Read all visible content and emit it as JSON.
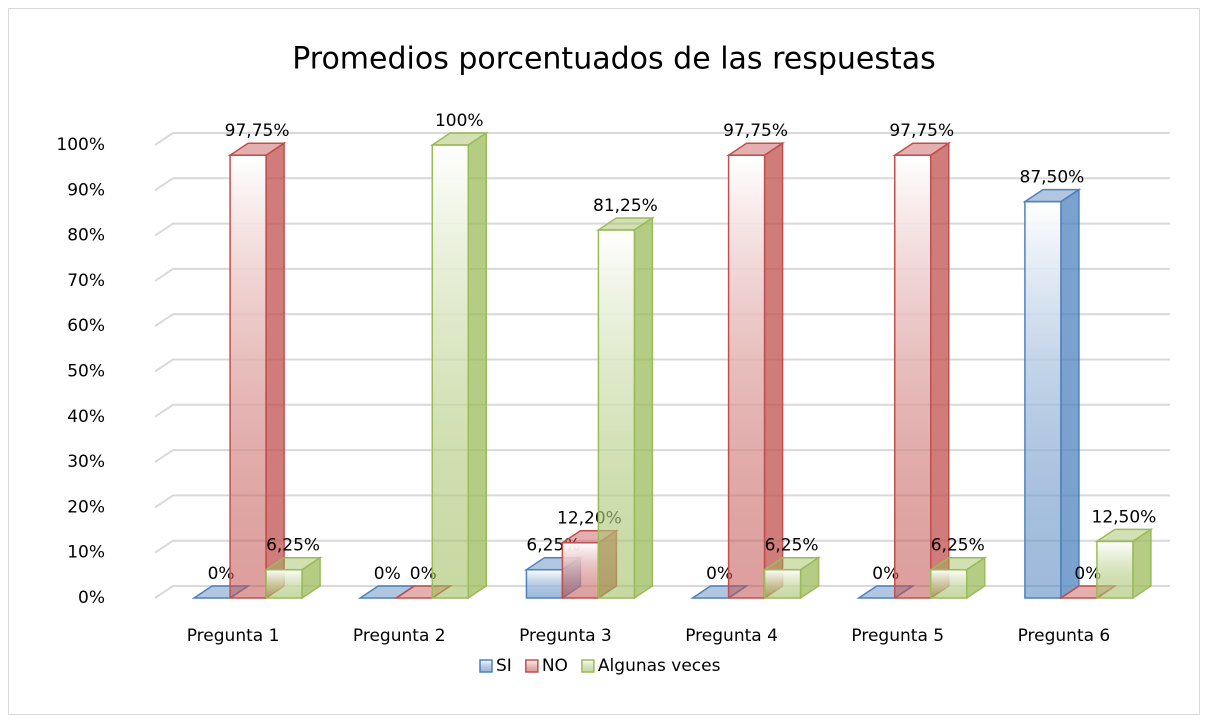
{
  "chart_data": {
    "type": "bar3d",
    "title": "Promedios porcentuados de las respuestas",
    "categories": [
      "Pregunta 1",
      "Pregunta 2",
      "Pregunta 3",
      "Pregunta 4",
      "Pregunta 5",
      "Pregunta 6"
    ],
    "series": [
      {
        "name": "SI",
        "color": "#4f81bd",
        "values": [
          0,
          0,
          6.25,
          0,
          0,
          87.5
        ],
        "value_labels": [
          "0%",
          "0%",
          "6,25%",
          "0%",
          "0%",
          "87,50%"
        ]
      },
      {
        "name": "NO",
        "color": "#c0504d",
        "values": [
          97.75,
          0,
          12.2,
          97.75,
          97.75,
          0
        ],
        "value_labels": [
          "97,75%",
          "0%",
          "12,20%",
          "97,75%",
          "97,75%",
          "0%"
        ]
      },
      {
        "name": "Algunas veces",
        "color": "#9bbb59",
        "values": [
          6.25,
          100,
          81.25,
          6.25,
          6.25,
          12.5
        ],
        "value_labels": [
          "6,25%",
          "100%",
          "81,25%",
          "6,25%",
          "6,25%",
          "12,50%"
        ]
      }
    ],
    "ylim": [
      0,
      100
    ],
    "yticks": [
      {
        "value": 0,
        "label": "0%"
      },
      {
        "value": 10,
        "label": "10%"
      },
      {
        "value": 20,
        "label": "20%"
      },
      {
        "value": 30,
        "label": "30%"
      },
      {
        "value": 40,
        "label": "40%"
      },
      {
        "value": 50,
        "label": "50%"
      },
      {
        "value": 60,
        "label": "60%"
      },
      {
        "value": 70,
        "label": "70%"
      },
      {
        "value": 80,
        "label": "80%"
      },
      {
        "value": 90,
        "label": "90%"
      },
      {
        "value": 100,
        "label": "100%"
      }
    ],
    "grid": true,
    "legend": "bottom"
  }
}
